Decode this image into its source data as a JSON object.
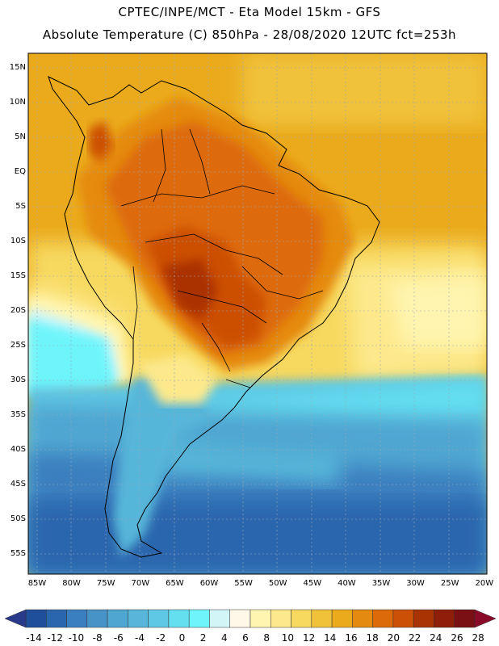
{
  "header": {
    "line1": "CPTEC/INPE/MCT -  Eta Model 15km - GFS",
    "line2": "Absolute Temperature (C) 850hPa - 28/08/2020 12UTC fct=253h"
  },
  "map": {
    "latitude_labels": [
      "15N",
      "10N",
      "5N",
      "EQ",
      "5S",
      "10S",
      "15S",
      "20S",
      "25S",
      "30S",
      "35S",
      "40S",
      "45S",
      "50S",
      "55S"
    ],
    "longitude_labels": [
      "85W",
      "80W",
      "75W",
      "70W",
      "65W",
      "60W",
      "55W",
      "50W",
      "45W",
      "40W",
      "35W",
      "30W",
      "25W",
      "20W"
    ]
  },
  "colorbar": {
    "labels": [
      "-14",
      "-12",
      "-10",
      "-8",
      "-6",
      "-4",
      "-2",
      "0",
      "2",
      "4",
      "6",
      "8",
      "10",
      "12",
      "14",
      "16",
      "18",
      "20",
      "22",
      "24",
      "26",
      "28"
    ],
    "colors": [
      "#1f4e9a",
      "#2a66ad",
      "#3a7fbf",
      "#4793c8",
      "#4fa6d1",
      "#57b6d9",
      "#5fc8e4",
      "#64dff0",
      "#6ef5fb",
      "#d2f5f8",
      "#fff8e8",
      "#fff5b0",
      "#fde98c",
      "#f7d960",
      "#f0c23a",
      "#ebaa1c",
      "#e58a10",
      "#dd6a08",
      "#cc5005",
      "#aa3303",
      "#8e1e0a",
      "#7a1014"
    ]
  }
}
